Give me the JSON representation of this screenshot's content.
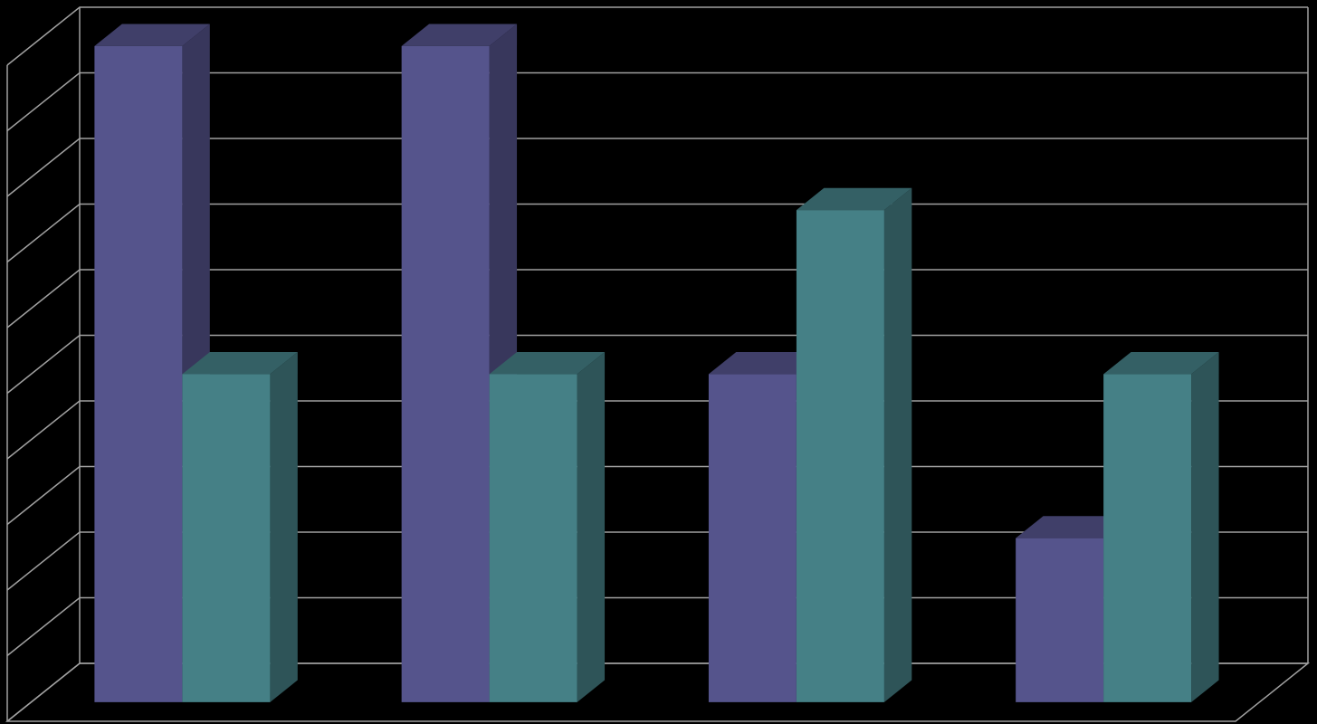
{
  "chart_data": {
    "type": "bar3d",
    "categories": [
      null,
      null,
      null,
      null
    ],
    "series": [
      {
        "color": "#55548c",
        "values": [
          10,
          10,
          5,
          2.5
        ]
      },
      {
        "color": "#458086",
        "values": [
          5,
          5,
          7.5,
          5
        ]
      }
    ],
    "ylim": [
      0,
      10
    ],
    "yticks": [
      0,
      1,
      2,
      3,
      4,
      5,
      6,
      7,
      8,
      9,
      10
    ],
    "grid": true
  }
}
